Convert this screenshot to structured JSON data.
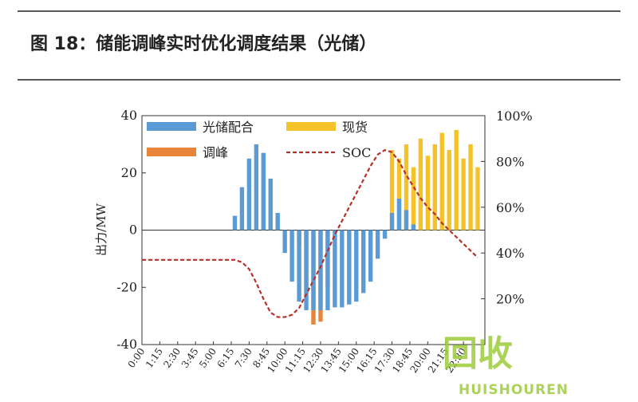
{
  "chart_data": {
    "type": "bar",
    "title": "图 18：储能调峰实时优化调度结果（光储）",
    "y_label": "出力/MW",
    "x": [
      0,
      0.5,
      1,
      1.5,
      2,
      2.5,
      3,
      3.5,
      4,
      4.5,
      5,
      5.5,
      6,
      6.5,
      7,
      7.5,
      8,
      8.5,
      9,
      9.5,
      10,
      10.5,
      11,
      11.5,
      12,
      12.5,
      13,
      13.5,
      14,
      14.5,
      15,
      15.5,
      16,
      16.5,
      17,
      17.5,
      18,
      18.5,
      19,
      19.5,
      20,
      20.5,
      21,
      21.5,
      22,
      22.5,
      23,
      23.5
    ],
    "xlim": [
      0,
      24
    ],
    "xticks": [
      {
        "value": 0,
        "label": "0:00"
      },
      {
        "value": 1.25,
        "label": "1:15"
      },
      {
        "value": 2.5,
        "label": "2:30"
      },
      {
        "value": 3.75,
        "label": "3:45"
      },
      {
        "value": 5,
        "label": "5:00"
      },
      {
        "value": 6.25,
        "label": "6:15"
      },
      {
        "value": 7.5,
        "label": "7:30"
      },
      {
        "value": 8.75,
        "label": "8:45"
      },
      {
        "value": 10,
        "label": "10:00"
      },
      {
        "value": 11.25,
        "label": "11:15"
      },
      {
        "value": 12.5,
        "label": "12:30"
      },
      {
        "value": 13.75,
        "label": "13:45"
      },
      {
        "value": 15,
        "label": "15:00"
      },
      {
        "value": 16.25,
        "label": "16:15"
      },
      {
        "value": 17.5,
        "label": "17:30"
      },
      {
        "value": 18.75,
        "label": "18:45"
      },
      {
        "value": 20,
        "label": "20:00"
      },
      {
        "value": 21.25,
        "label": "21:15"
      },
      {
        "value": 22.5,
        "label": "22:30"
      }
    ],
    "ylim": [
      -40,
      40
    ],
    "yticks": [
      -40,
      -20,
      0,
      20,
      40
    ],
    "y2lim": [
      0,
      100
    ],
    "y2ticks": [
      {
        "value": 20,
        "label": "20%"
      },
      {
        "value": 40,
        "label": "40%"
      },
      {
        "value": 60,
        "label": "60%"
      },
      {
        "value": 80,
        "label": "80%"
      },
      {
        "value": 100,
        "label": "100%"
      }
    ],
    "legend": "upper left",
    "series": [
      {
        "name": "现货",
        "type": "bar",
        "color": "#f5c22a",
        "values": [
          0,
          0,
          0,
          0,
          0,
          0,
          0,
          0,
          0,
          0,
          0,
          0,
          0,
          0,
          0,
          0,
          0,
          0,
          0,
          0,
          0,
          0,
          0,
          0,
          0,
          0,
          0,
          0,
          0,
          0,
          0,
          0,
          0,
          0,
          0,
          28,
          25,
          30,
          22,
          32,
          26,
          30,
          34,
          28,
          35,
          25,
          30,
          22
        ]
      },
      {
        "name": "调峰",
        "type": "bar",
        "color": "#e8853a",
        "values": [
          0,
          0,
          0,
          0,
          0,
          0,
          0,
          0,
          0,
          0,
          0,
          0,
          0,
          0,
          0,
          0,
          0,
          0,
          0,
          0,
          0,
          0,
          -5,
          -22,
          -33,
          -32,
          -20,
          0,
          0,
          0,
          0,
          0,
          0,
          0,
          0,
          0,
          0,
          0,
          0,
          0,
          0,
          0,
          0,
          0,
          0,
          0,
          0,
          0
        ]
      },
      {
        "name": "光储配合",
        "type": "bar",
        "color": "#5b9bd5",
        "values": [
          0,
          0,
          0,
          0,
          0,
          0,
          0,
          0,
          0,
          0,
          0,
          0,
          0,
          5,
          15,
          25,
          30,
          27,
          18,
          6,
          -8,
          -18,
          -25,
          -28,
          -28,
          -28,
          -28,
          -27,
          -27,
          -26,
          -25,
          -22,
          -18,
          -10,
          -3,
          6,
          11,
          7,
          2,
          0,
          0,
          0,
          0,
          0,
          0,
          0,
          0,
          0
        ]
      },
      {
        "name": "SOC",
        "type": "line",
        "axis": "y2",
        "color": "#b5302a",
        "dashed": true,
        "values": [
          37,
          37,
          37,
          37,
          37,
          37,
          37,
          37,
          37,
          37,
          37,
          37,
          37,
          37,
          36,
          33,
          27,
          20,
          14,
          12,
          12,
          13,
          16,
          22,
          28,
          34,
          41,
          48,
          54,
          60,
          66,
          72,
          78,
          83,
          85,
          84,
          80,
          74,
          69,
          64,
          60,
          57,
          53,
          50,
          47,
          44,
          41,
          38
        ]
      }
    ],
    "watermark": [
      "回收",
      "HUISHOUREN"
    ]
  }
}
